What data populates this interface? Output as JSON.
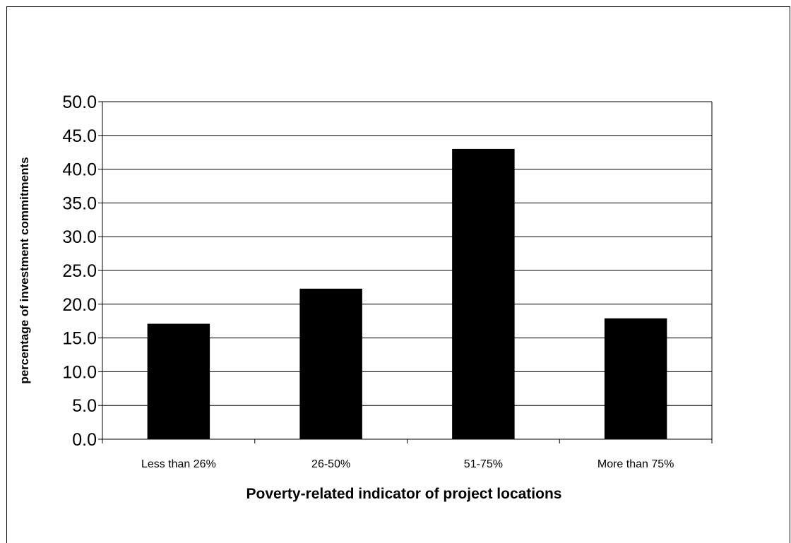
{
  "chart_data": {
    "type": "bar",
    "title": "",
    "xlabel": "Poverty-related indicator of project locations",
    "ylabel": "percentage of investment commitments",
    "categories": [
      "Less than 26%",
      "26-50%",
      "51-75%",
      "More than 75%"
    ],
    "values": [
      17.1,
      22.3,
      43.0,
      17.9
    ],
    "ylim": [
      0,
      50
    ],
    "yticks": [
      "0.0",
      "5.0",
      "10.0",
      "15.0",
      "20.0",
      "25.0",
      "30.0",
      "35.0",
      "40.0",
      "45.0",
      "50.0"
    ],
    "grid": true,
    "legend": "none",
    "bar_color": "#000000",
    "grid_color": "#000000"
  }
}
